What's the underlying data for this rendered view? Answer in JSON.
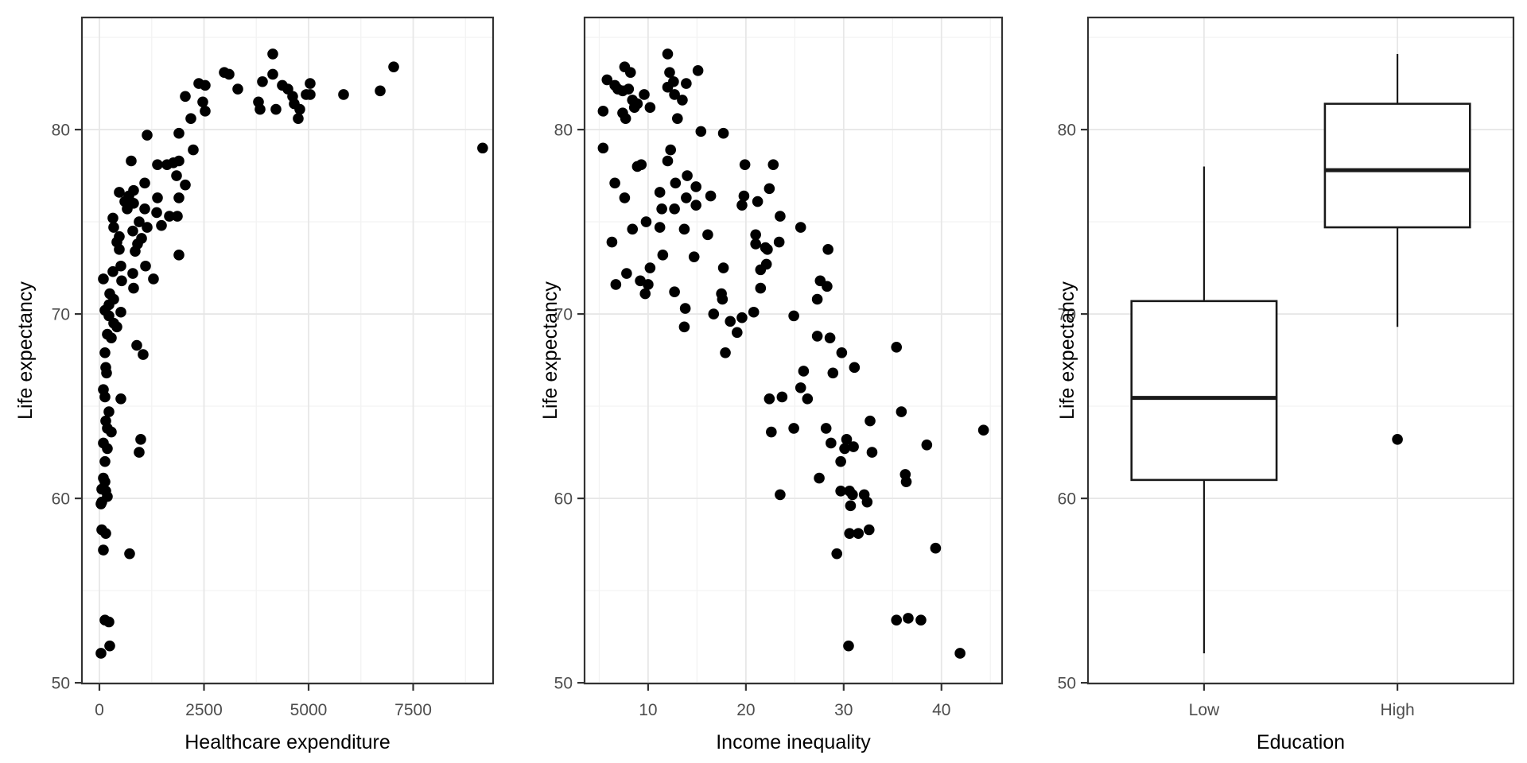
{
  "figure": {
    "background": "#ffffff",
    "shared_y_axis_label": "Life expectancy"
  },
  "style": {
    "point_color": "#000000",
    "panel_border_color": "#333333",
    "grid_major_color": "#e7e7e7",
    "grid_minor_color": "#f2f2f2",
    "tick_mark_color": "#333333",
    "tick_label_color": "#4d4d4d",
    "axis_title_color": "#000000",
    "box_stroke_color": "#1a1a1a",
    "panel_background": "#ffffff"
  },
  "chart_data": [
    {
      "type": "scatter",
      "xlabel": "Healthcare expenditure",
      "ylabel": "Life expectancy",
      "x_ticks": [
        0,
        2500,
        5000,
        7500
      ],
      "x_minor": [
        1250,
        3750,
        6250,
        8750
      ],
      "y_ticks": [
        50,
        60,
        70,
        80
      ],
      "y_minor": [
        55,
        65,
        75,
        85
      ],
      "xlim": [
        -418,
        9410
      ],
      "ylim": [
        49.96,
        86.08
      ],
      "grid": true,
      "points": [
        [
          4144,
          84.1
        ],
        [
          2985,
          83.1
        ],
        [
          3099,
          83.0
        ],
        [
          4144,
          83.0
        ],
        [
          7034,
          83.4
        ],
        [
          3308,
          82.2
        ],
        [
          3897,
          82.6
        ],
        [
          4372,
          82.4
        ],
        [
          4505,
          82.2
        ],
        [
          5037,
          82.5
        ],
        [
          5037,
          81.9
        ],
        [
          4942,
          81.9
        ],
        [
          4619,
          81.8
        ],
        [
          4657,
          81.4
        ],
        [
          3802,
          81.5
        ],
        [
          3840,
          81.1
        ],
        [
          4220,
          81.1
        ],
        [
          4790,
          81.1
        ],
        [
          4752,
          80.6
        ],
        [
          5836,
          81.9
        ],
        [
          6711,
          82.1
        ],
        [
          2376,
          82.5
        ],
        [
          2528,
          82.4
        ],
        [
          2053,
          81.8
        ],
        [
          2471,
          81.5
        ],
        [
          2528,
          81.0
        ],
        [
          2186,
          80.6
        ],
        [
          9160,
          79.0
        ],
        [
          1141,
          79.7
        ],
        [
          1901,
          79.8
        ],
        [
          2243,
          78.9
        ],
        [
          760,
          78.3
        ],
        [
          1388,
          78.1
        ],
        [
          1616,
          78.1
        ],
        [
          1768,
          78.2
        ],
        [
          1901,
          78.3
        ],
        [
          1844,
          77.5
        ],
        [
          2053,
          77.0
        ],
        [
          1084,
          77.1
        ],
        [
          817,
          76.7
        ],
        [
          475,
          76.6
        ],
        [
          703,
          76.4
        ],
        [
          608,
          76.1
        ],
        [
          817,
          76.0
        ],
        [
          665,
          75.7
        ],
        [
          1388,
          76.3
        ],
        [
          1901,
          76.3
        ],
        [
          1084,
          75.7
        ],
        [
          1369,
          75.5
        ],
        [
          1673,
          75.3
        ],
        [
          1863,
          75.3
        ],
        [
          323,
          75.2
        ],
        [
          950,
          75.0
        ],
        [
          1141,
          74.7
        ],
        [
          1483,
          74.8
        ],
        [
          342,
          74.7
        ],
        [
          798,
          74.5
        ],
        [
          475,
          74.2
        ],
        [
          418,
          73.9
        ],
        [
          1008,
          74.1
        ],
        [
          912,
          73.8
        ],
        [
          475,
          73.5
        ],
        [
          855,
          73.4
        ],
        [
          1901,
          73.2
        ],
        [
          513,
          72.6
        ],
        [
          323,
          72.3
        ],
        [
          1103,
          72.6
        ],
        [
          798,
          72.2
        ],
        [
          95,
          71.9
        ],
        [
          532,
          71.8
        ],
        [
          1292,
          71.9
        ],
        [
          817,
          71.4
        ],
        [
          247,
          71.1
        ],
        [
          342,
          70.8
        ],
        [
          228,
          70.5
        ],
        [
          133,
          70.2
        ],
        [
          228,
          69.9
        ],
        [
          513,
          70.1
        ],
        [
          342,
          69.5
        ],
        [
          418,
          69.3
        ],
        [
          190,
          68.9
        ],
        [
          285,
          68.7
        ],
        [
          133,
          67.9
        ],
        [
          893,
          68.3
        ],
        [
          1045,
          67.8
        ],
        [
          152,
          67.1
        ],
        [
          171,
          66.8
        ],
        [
          95,
          65.9
        ],
        [
          133,
          65.5
        ],
        [
          513,
          65.4
        ],
        [
          228,
          64.7
        ],
        [
          152,
          64.2
        ],
        [
          190,
          63.8
        ],
        [
          285,
          63.6
        ],
        [
          95,
          63.0
        ],
        [
          190,
          62.7
        ],
        [
          988,
          63.2
        ],
        [
          950,
          62.5
        ],
        [
          133,
          62.0
        ],
        [
          95,
          61.1
        ],
        [
          133,
          60.9
        ],
        [
          57,
          60.5
        ],
        [
          152,
          60.4
        ],
        [
          190,
          60.1
        ],
        [
          57,
          59.8
        ],
        [
          38,
          59.7
        ],
        [
          57,
          58.3
        ],
        [
          152,
          58.1
        ],
        [
          95,
          57.2
        ],
        [
          722,
          57.0
        ],
        [
          133,
          53.4
        ],
        [
          228,
          53.3
        ],
        [
          247,
          52.0
        ],
        [
          38,
          51.6
        ]
      ]
    },
    {
      "type": "scatter",
      "xlabel": "Income inequality",
      "ylabel": "Life expectancy",
      "x_ticks": [
        10,
        20,
        30,
        40
      ],
      "x_minor": [
        5,
        15,
        25,
        35,
        45
      ],
      "y_ticks": [
        50,
        60,
        70,
        80
      ],
      "y_minor": [
        55,
        65,
        75,
        85
      ],
      "xlim": [
        3.5,
        46.2
      ],
      "ylim": [
        49.96,
        86.08
      ],
      "grid": true,
      "points": [
        [
          12.0,
          84.1
        ],
        [
          7.6,
          83.4
        ],
        [
          8.2,
          83.1
        ],
        [
          5.8,
          82.7
        ],
        [
          15.1,
          83.2
        ],
        [
          6.6,
          82.4
        ],
        [
          6.9,
          82.2
        ],
        [
          7.4,
          82.1
        ],
        [
          8.0,
          82.2
        ],
        [
          12.2,
          83.1
        ],
        [
          12.6,
          82.6
        ],
        [
          12.0,
          82.3
        ],
        [
          13.9,
          82.5
        ],
        [
          12.7,
          81.9
        ],
        [
          13.5,
          81.6
        ],
        [
          9.6,
          81.9
        ],
        [
          8.4,
          81.6
        ],
        [
          8.9,
          81.4
        ],
        [
          8.6,
          81.2
        ],
        [
          10.2,
          81.2
        ],
        [
          7.4,
          80.9
        ],
        [
          5.4,
          81.0
        ],
        [
          7.7,
          80.6
        ],
        [
          13.0,
          80.6
        ],
        [
          15.4,
          79.9
        ],
        [
          17.7,
          79.8
        ],
        [
          5.4,
          79.0
        ],
        [
          9.3,
          78.1
        ],
        [
          8.9,
          78.0
        ],
        [
          12.3,
          78.9
        ],
        [
          12.0,
          78.3
        ],
        [
          6.6,
          77.1
        ],
        [
          7.6,
          76.3
        ],
        [
          11.2,
          76.6
        ],
        [
          12.8,
          77.1
        ],
        [
          14.0,
          77.5
        ],
        [
          14.9,
          76.9
        ],
        [
          12.7,
          75.7
        ],
        [
          13.9,
          76.3
        ],
        [
          14.9,
          75.9
        ],
        [
          16.4,
          76.4
        ],
        [
          19.9,
          78.1
        ],
        [
          22.8,
          78.1
        ],
        [
          19.8,
          76.4
        ],
        [
          19.6,
          75.9
        ],
        [
          21.2,
          76.1
        ],
        [
          22.4,
          76.8
        ],
        [
          23.5,
          75.3
        ],
        [
          25.6,
          74.7
        ],
        [
          9.8,
          75.0
        ],
        [
          11.4,
          75.7
        ],
        [
          11.2,
          74.7
        ],
        [
          8.4,
          74.6
        ],
        [
          13.7,
          74.6
        ],
        [
          16.1,
          74.3
        ],
        [
          21.0,
          74.3
        ],
        [
          6.3,
          73.9
        ],
        [
          11.5,
          73.2
        ],
        [
          14.7,
          73.1
        ],
        [
          10.2,
          72.5
        ],
        [
          7.8,
          72.2
        ],
        [
          6.7,
          71.6
        ],
        [
          9.2,
          71.8
        ],
        [
          10.0,
          71.6
        ],
        [
          9.7,
          71.1
        ],
        [
          12.7,
          71.2
        ],
        [
          17.7,
          72.5
        ],
        [
          17.5,
          71.1
        ],
        [
          17.6,
          70.8
        ],
        [
          21.5,
          72.4
        ],
        [
          22.1,
          72.7
        ],
        [
          21.0,
          73.8
        ],
        [
          22.0,
          73.6
        ],
        [
          22.2,
          73.5
        ],
        [
          23.4,
          73.9
        ],
        [
          21.5,
          71.4
        ],
        [
          13.8,
          70.3
        ],
        [
          16.7,
          70.0
        ],
        [
          20.8,
          70.1
        ],
        [
          18.4,
          69.6
        ],
        [
          19.6,
          69.8
        ],
        [
          19.1,
          69.0
        ],
        [
          13.7,
          69.3
        ],
        [
          24.9,
          69.9
        ],
        [
          17.9,
          67.9
        ],
        [
          22.4,
          65.4
        ],
        [
          23.7,
          65.5
        ],
        [
          22.6,
          63.6
        ],
        [
          24.9,
          63.8
        ],
        [
          28.4,
          73.5
        ],
        [
          27.6,
          71.8
        ],
        [
          28.3,
          71.5
        ],
        [
          27.3,
          70.8
        ],
        [
          27.3,
          68.8
        ],
        [
          28.6,
          68.7
        ],
        [
          29.8,
          67.9
        ],
        [
          35.4,
          68.2
        ],
        [
          31.1,
          67.1
        ],
        [
          25.9,
          66.9
        ],
        [
          28.9,
          66.8
        ],
        [
          25.6,
          66.0
        ],
        [
          26.3,
          65.4
        ],
        [
          35.9,
          64.7
        ],
        [
          32.7,
          64.2
        ],
        [
          28.2,
          63.8
        ],
        [
          44.3,
          63.7
        ],
        [
          28.7,
          63.0
        ],
        [
          30.3,
          63.2
        ],
        [
          30.1,
          62.7
        ],
        [
          31.0,
          62.8
        ],
        [
          32.9,
          62.5
        ],
        [
          29.7,
          62.0
        ],
        [
          38.5,
          62.9
        ],
        [
          27.5,
          61.1
        ],
        [
          36.3,
          61.3
        ],
        [
          36.4,
          60.9
        ],
        [
          29.7,
          60.4
        ],
        [
          30.6,
          60.4
        ],
        [
          30.9,
          60.2
        ],
        [
          32.1,
          60.2
        ],
        [
          32.4,
          59.8
        ],
        [
          30.7,
          59.6
        ],
        [
          32.6,
          58.3
        ],
        [
          30.6,
          58.1
        ],
        [
          31.5,
          58.1
        ],
        [
          29.3,
          57.0
        ],
        [
          39.4,
          57.3
        ],
        [
          35.4,
          53.4
        ],
        [
          36.6,
          53.5
        ],
        [
          37.9,
          53.4
        ],
        [
          23.5,
          60.2
        ],
        [
          30.5,
          52.0
        ],
        [
          41.9,
          51.6
        ]
      ]
    },
    {
      "type": "boxplot",
      "xlabel": "Education",
      "ylabel": "Life expectancy",
      "categories": [
        "Low",
        "High"
      ],
      "y_ticks": [
        50,
        60,
        70,
        80
      ],
      "y_minor": [
        55,
        65,
        75,
        85
      ],
      "ylim": [
        49.96,
        86.08
      ],
      "grid": true,
      "boxes": [
        {
          "category": "Low",
          "min": 51.6,
          "q1": 61.0,
          "median": 65.45,
          "q3": 70.7,
          "max": 78.0,
          "outliers": []
        },
        {
          "category": "High",
          "min": 69.3,
          "q1": 74.7,
          "median": 77.8,
          "q3": 81.4,
          "max": 84.1,
          "outliers": [
            63.2
          ]
        }
      ]
    }
  ]
}
